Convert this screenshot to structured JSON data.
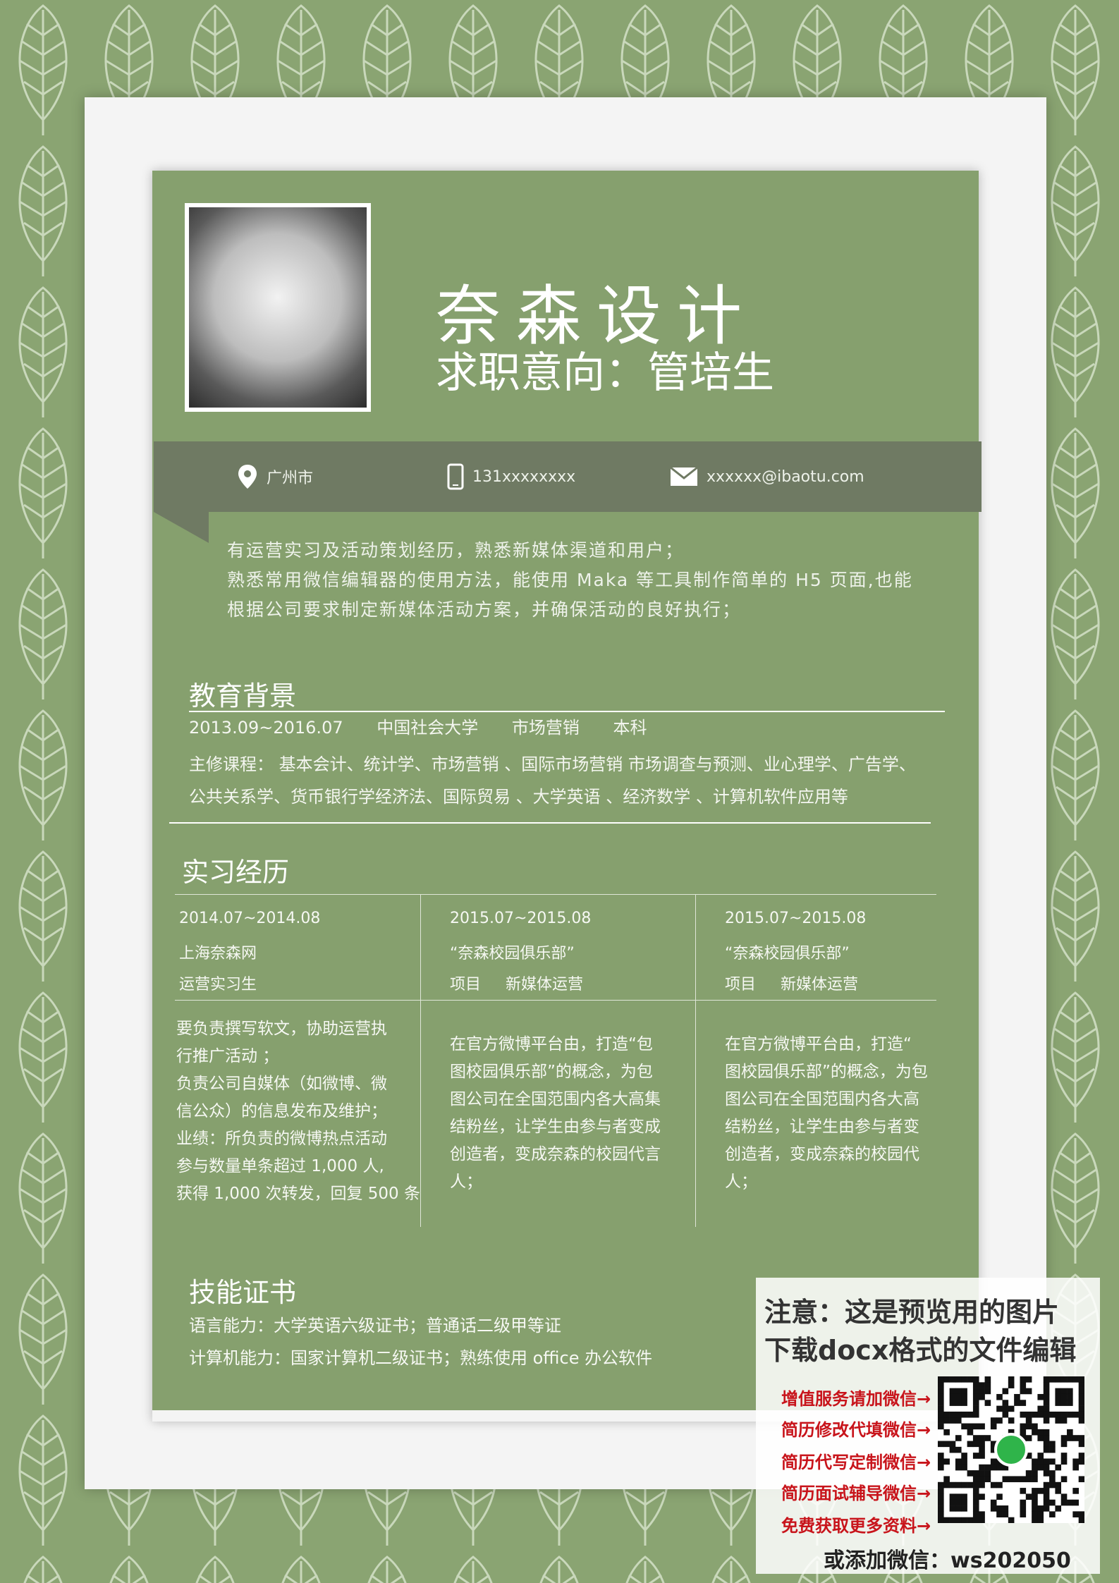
{
  "header": {
    "name": "奈森设计",
    "intent": "求职意向：管培生"
  },
  "contact": {
    "location": "广州市",
    "phone": "131xxxxxxxx",
    "email": "xxxxxx@ibaotu.com"
  },
  "summary": [
    "有运营实习及活动策划经历，熟悉新媒体渠道和用户；",
    "熟悉常用微信编辑器的使用方法，能使用 Maka 等工具制作简单的 H5 页面,也能",
    "根据公司要求制定新媒体活动方案，并确保活动的良好执行；"
  ],
  "education": {
    "title": "教育背景",
    "period": "2013.09~2016.07",
    "school": "中国社会大学",
    "major": "市场营销",
    "degree": "本科",
    "courses_line1": "主修课程： 基本会计、统计学、市场营销 、国际市场营销 市场调查与预测、业心理学、广告学、",
    "courses_line2": "公共关系学、货币银行学经济法、国际贸易 、大学英语 、经济数学 、计算机软件应用等"
  },
  "internship": {
    "title": "实习经历",
    "columns": [
      {
        "period": "2014.07~2014.08",
        "org": "上海奈森网",
        "role": "运营实习生",
        "desc": [
          "要负责撰写软文，协助运营执",
          "行推广活动 ；",
          "负责公司自媒体（如微博、微",
          "信公众）的信息发布及维护；",
          "业绩：所负责的微博热点活动",
          "参与数量单条超过 1,000 人,",
          "获得 1,000 次转发，回复 500 条"
        ]
      },
      {
        "period": "2015.07~2015.08",
        "org": "“奈森校园俱乐部”",
        "role": "项目     新媒体运营",
        "desc": [
          "在官方微博平台由，打造“包",
          "图校园俱乐部”的概念，为包",
          "图公司在全国范围内各大高集",
          "结粉丝，让学生由参与者变成",
          "创造者，变成奈森的校园代言",
          "人；"
        ]
      },
      {
        "period": "2015.07~2015.08",
        "org": "“奈森校园俱乐部”",
        "role": "项目     新媒体运营",
        "desc": [
          "在官方微博平台由，打造“",
          "图校园俱乐部”的概念，为包",
          "图公司在全国范围内各大高",
          "结粉丝，让学生由参与者变",
          "创造者，变成奈森的校园代",
          "人；"
        ]
      }
    ]
  },
  "skills": {
    "title": "技能证书",
    "language": "语言能力：大学英语六级证书；普通话二级甲等证",
    "computer": "计算机能力：国家计算机二级证书；熟练使用 office 办公软件"
  },
  "notice": {
    "line1": "注意：这是预览用的图片",
    "line2": "下载docx格式的文件编辑",
    "services": [
      "增值服务请加微信→",
      "简历修改代填微信→",
      "简历代写定制微信→",
      "简历面试辅导微信→",
      "免费获取更多资料→"
    ],
    "wechat": "或添加微信：ws202050"
  }
}
